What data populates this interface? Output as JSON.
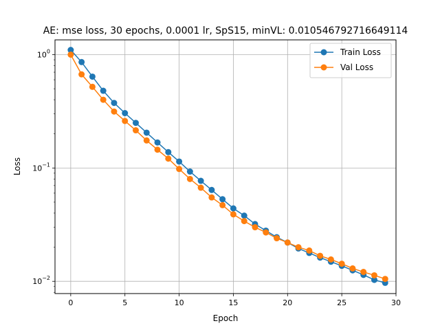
{
  "chart_data": {
    "type": "line",
    "title": "AE: mse loss, 30 epochs, 0.0001 lr, SpS15, minVL: 0.010546792716649114",
    "xlabel": "Epoch",
    "ylabel": "Loss",
    "yscale": "log",
    "xlim": [
      -1.45,
      30
    ],
    "ylim": [
      0.0078,
      1.35
    ],
    "grid": true,
    "legend_position": "upper right",
    "x_ticks": [
      0,
      5,
      10,
      15,
      20,
      25,
      30
    ],
    "x_tick_labels": [
      "0",
      "5",
      "10",
      "15",
      "20",
      "25",
      "30"
    ],
    "y_ticks": [
      0.01,
      0.1,
      1
    ],
    "y_tick_labels": [
      {
        "base": "10",
        "exp": "−2"
      },
      {
        "base": "10",
        "exp": "−1"
      },
      {
        "base": "10",
        "exp": "0"
      }
    ],
    "x": [
      0,
      1,
      2,
      3,
      4,
      5,
      6,
      7,
      8,
      9,
      10,
      11,
      12,
      13,
      14,
      15,
      16,
      17,
      18,
      19,
      20,
      21,
      22,
      23,
      24,
      25,
      26,
      27,
      28,
      29
    ],
    "series": [
      {
        "name": "Train Loss",
        "color": "#1f77b4",
        "values": [
          1.1,
          0.86,
          0.64,
          0.48,
          0.375,
          0.305,
          0.25,
          0.205,
          0.168,
          0.138,
          0.114,
          0.093,
          0.077,
          0.064,
          0.053,
          0.044,
          0.038,
          0.032,
          0.028,
          0.0245,
          0.022,
          0.0195,
          0.0178,
          0.0162,
          0.0149,
          0.0137,
          0.0125,
          0.0114,
          0.0103,
          0.0097
        ]
      },
      {
        "name": "Val Loss",
        "color": "#ff7f0e",
        "values": [
          1.0,
          0.67,
          0.52,
          0.4,
          0.315,
          0.26,
          0.215,
          0.175,
          0.145,
          0.121,
          0.098,
          0.08,
          0.067,
          0.055,
          0.047,
          0.039,
          0.034,
          0.03,
          0.027,
          0.024,
          0.022,
          0.02,
          0.0187,
          0.0168,
          0.0156,
          0.0143,
          0.013,
          0.0121,
          0.0113,
          0.0105
        ]
      }
    ]
  }
}
